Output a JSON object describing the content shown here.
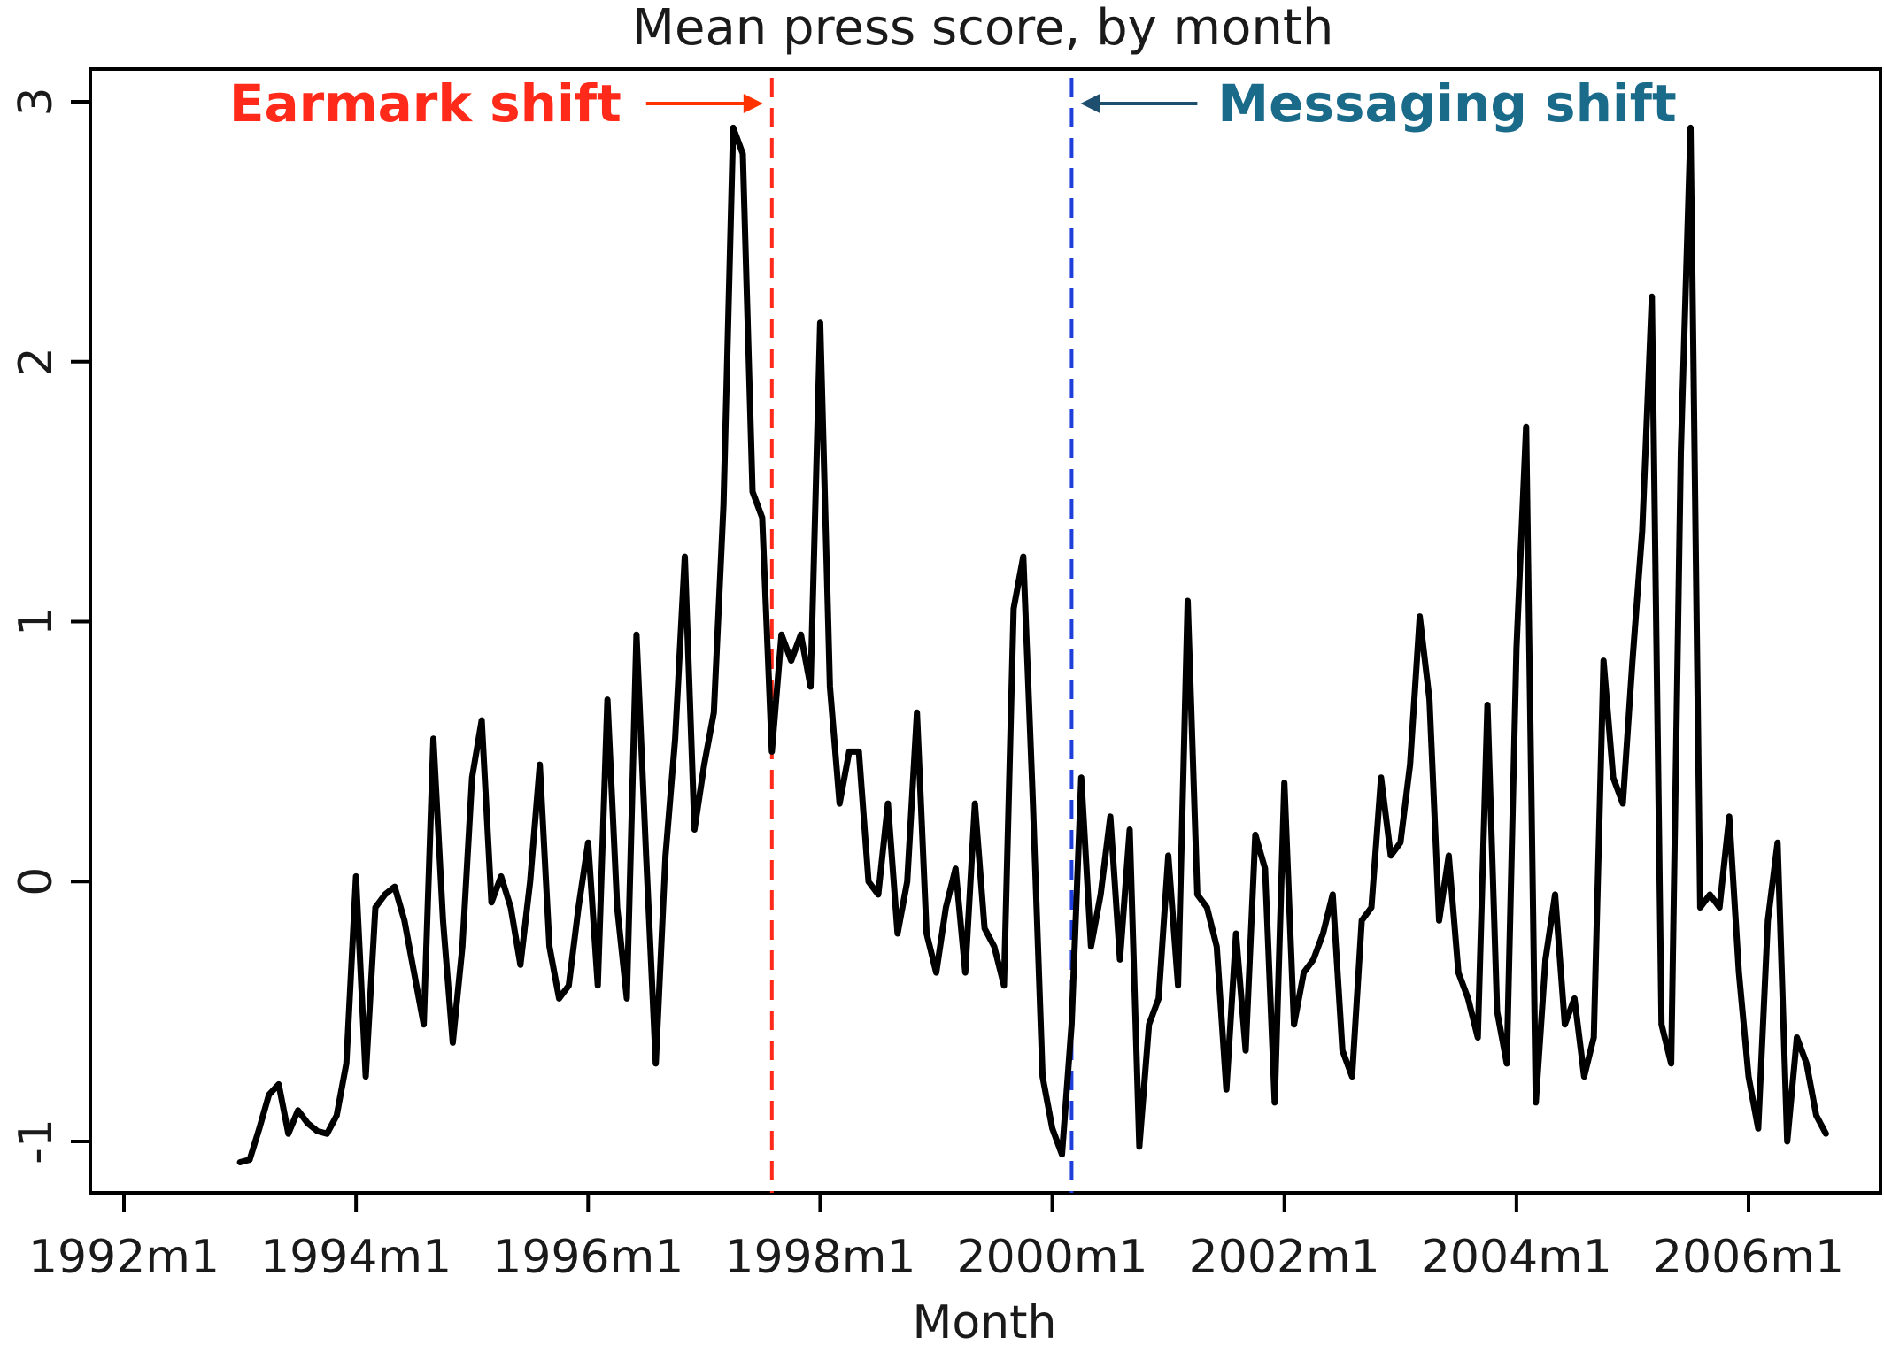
{
  "chart_data": {
    "type": "line",
    "title": "Mean press score, by month",
    "xlabel": "Month",
    "ylabel": "",
    "xlim": [
      "1992m1",
      "2007m1"
    ],
    "ylim": [
      -1.2,
      3.15
    ],
    "x_ticks": [
      "1992m1",
      "1994m1",
      "1996m1",
      "1998m1",
      "2000m1",
      "2002m1",
      "2004m1",
      "2006m1"
    ],
    "y_ticks": [
      "-1",
      "0",
      "1",
      "2",
      "3"
    ],
    "grid": false,
    "legend": "none",
    "colors": {
      "series": "#000000",
      "earmark": "#ff2a1a",
      "messaging": "#1f3fdc",
      "arrow_earmark": "#ff3300",
      "arrow_messaging": "#1f4f6e",
      "messaging_text": "#1a6a8a"
    },
    "annotations": [
      {
        "label": "Earmark shift",
        "x": "1997m8",
        "color": "#ff2a1a"
      },
      {
        "label": "Messaging shift",
        "x": "2000m3",
        "color": "#1f3fdc"
      }
    ],
    "series": [
      {
        "values": [
          [
            "1993m1",
            -1.08
          ],
          [
            "1993m2",
            -1.07
          ],
          [
            "1993m3",
            -0.95
          ],
          [
            "1993m4",
            -0.82
          ],
          [
            "1993m5",
            -0.78
          ],
          [
            "1993m6",
            -0.97
          ],
          [
            "1993m7",
            -0.88
          ],
          [
            "1993m8",
            -0.93
          ],
          [
            "1993m9",
            -0.96
          ],
          [
            "1993m10",
            -0.97
          ],
          [
            "1993m11",
            -0.9
          ],
          [
            "1993m12",
            -0.7
          ],
          [
            "1994m1",
            0.02
          ],
          [
            "1994m2",
            -0.75
          ],
          [
            "1994m3",
            -0.1
          ],
          [
            "1994m4",
            -0.05
          ],
          [
            "1994m5",
            -0.02
          ],
          [
            "1994m6",
            -0.15
          ],
          [
            "1994m7",
            -0.35
          ],
          [
            "1994m8",
            -0.55
          ],
          [
            "1994m9",
            0.55
          ],
          [
            "1994m10",
            -0.15
          ],
          [
            "1994m11",
            -0.62
          ],
          [
            "1994m12",
            -0.25
          ],
          [
            "1995m1",
            0.4
          ],
          [
            "1995m2",
            0.62
          ],
          [
            "1995m3",
            -0.08
          ],
          [
            "1995m4",
            0.02
          ],
          [
            "1995m5",
            -0.1
          ],
          [
            "1995m6",
            -0.32
          ],
          [
            "1995m7",
            0.0
          ],
          [
            "1995m8",
            0.45
          ],
          [
            "1995m9",
            -0.25
          ],
          [
            "1995m10",
            -0.45
          ],
          [
            "1995m11",
            -0.4
          ],
          [
            "1995m12",
            -0.1
          ],
          [
            "1996m1",
            0.15
          ],
          [
            "1996m2",
            -0.4
          ],
          [
            "1996m3",
            0.7
          ],
          [
            "1996m4",
            -0.1
          ],
          [
            "1996m5",
            -0.45
          ],
          [
            "1996m6",
            0.95
          ],
          [
            "1996m7",
            0.1
          ],
          [
            "1996m8",
            -0.7
          ],
          [
            "1996m9",
            0.1
          ],
          [
            "1996m10",
            0.55
          ],
          [
            "1996m11",
            1.25
          ],
          [
            "1996m12",
            0.2
          ],
          [
            "1997m1",
            0.45
          ],
          [
            "1997m2",
            0.65
          ],
          [
            "1997m3",
            1.45
          ],
          [
            "1997m4",
            2.9
          ],
          [
            "1997m5",
            2.8
          ],
          [
            "1997m6",
            1.5
          ],
          [
            "1997m7",
            1.4
          ],
          [
            "1997m8",
            0.5
          ],
          [
            "1997m9",
            0.95
          ],
          [
            "1997m10",
            0.85
          ],
          [
            "1997m11",
            0.95
          ],
          [
            "1997m12",
            0.75
          ],
          [
            "1998m1",
            2.15
          ],
          [
            "1998m2",
            0.75
          ],
          [
            "1998m3",
            0.3
          ],
          [
            "1998m4",
            0.5
          ],
          [
            "1998m5",
            0.5
          ],
          [
            "1998m6",
            0.0
          ],
          [
            "1998m7",
            -0.05
          ],
          [
            "1998m8",
            0.3
          ],
          [
            "1998m9",
            -0.2
          ],
          [
            "1998m10",
            0.0
          ],
          [
            "1998m11",
            0.65
          ],
          [
            "1998m12",
            -0.2
          ],
          [
            "1999m1",
            -0.35
          ],
          [
            "1999m2",
            -0.1
          ],
          [
            "1999m3",
            0.05
          ],
          [
            "1999m4",
            -0.35
          ],
          [
            "1999m5",
            0.3
          ],
          [
            "1999m6",
            -0.18
          ],
          [
            "1999m7",
            -0.25
          ],
          [
            "1999m8",
            -0.4
          ],
          [
            "1999m9",
            1.05
          ],
          [
            "1999m10",
            1.25
          ],
          [
            "1999m11",
            0.3
          ],
          [
            "1999m12",
            -0.75
          ],
          [
            "2000m1",
            -0.95
          ],
          [
            "2000m2",
            -1.05
          ],
          [
            "2000m3",
            -0.55
          ],
          [
            "2000m4",
            0.4
          ],
          [
            "2000m5",
            -0.25
          ],
          [
            "2000m6",
            -0.05
          ],
          [
            "2000m7",
            0.25
          ],
          [
            "2000m8",
            -0.3
          ],
          [
            "2000m9",
            0.2
          ],
          [
            "2000m10",
            -1.02
          ],
          [
            "2000m11",
            -0.55
          ],
          [
            "2000m12",
            -0.45
          ],
          [
            "2001m1",
            0.1
          ],
          [
            "2001m2",
            -0.4
          ],
          [
            "2001m3",
            1.08
          ],
          [
            "2001m4",
            -0.05
          ],
          [
            "2001m5",
            -0.1
          ],
          [
            "2001m6",
            -0.25
          ],
          [
            "2001m7",
            -0.8
          ],
          [
            "2001m8",
            -0.2
          ],
          [
            "2001m9",
            -0.65
          ],
          [
            "2001m10",
            0.18
          ],
          [
            "2001m11",
            0.05
          ],
          [
            "2001m12",
            -0.85
          ],
          [
            "2002m1",
            0.38
          ],
          [
            "2002m2",
            -0.55
          ],
          [
            "2002m3",
            -0.35
          ],
          [
            "2002m4",
            -0.3
          ],
          [
            "2002m5",
            -0.2
          ],
          [
            "2002m6",
            -0.05
          ],
          [
            "2002m7",
            -0.65
          ],
          [
            "2002m8",
            -0.75
          ],
          [
            "2002m9",
            -0.15
          ],
          [
            "2002m10",
            -0.1
          ],
          [
            "2002m11",
            0.4
          ],
          [
            "2002m12",
            0.1
          ],
          [
            "2003m1",
            0.15
          ],
          [
            "2003m2",
            0.45
          ],
          [
            "2003m3",
            1.02
          ],
          [
            "2003m4",
            0.7
          ],
          [
            "2003m5",
            -0.15
          ],
          [
            "2003m6",
            0.1
          ],
          [
            "2003m7",
            -0.35
          ],
          [
            "2003m8",
            -0.45
          ],
          [
            "2003m9",
            -0.6
          ],
          [
            "2003m10",
            0.68
          ],
          [
            "2003m11",
            -0.5
          ],
          [
            "2003m12",
            -0.7
          ],
          [
            "2004m1",
            0.9
          ],
          [
            "2004m2",
            1.75
          ],
          [
            "2004m3",
            -0.85
          ],
          [
            "2004m4",
            -0.3
          ],
          [
            "2004m5",
            -0.05
          ],
          [
            "2004m6",
            -0.55
          ],
          [
            "2004m7",
            -0.45
          ],
          [
            "2004m8",
            -0.75
          ],
          [
            "2004m9",
            -0.6
          ],
          [
            "2004m10",
            0.85
          ],
          [
            "2004m11",
            0.4
          ],
          [
            "2004m12",
            0.3
          ],
          [
            "2005m1",
            0.85
          ],
          [
            "2005m2",
            1.35
          ],
          [
            "2005m3",
            2.25
          ],
          [
            "2005m4",
            -0.55
          ],
          [
            "2005m5",
            -0.7
          ],
          [
            "2005m6",
            1.65
          ],
          [
            "2005m7",
            2.9
          ],
          [
            "2005m8",
            -0.1
          ],
          [
            "2005m9",
            -0.05
          ],
          [
            "2005m10",
            -0.1
          ],
          [
            "2005m11",
            0.25
          ],
          [
            "2005m12",
            -0.35
          ],
          [
            "2006m1",
            -0.75
          ],
          [
            "2006m2",
            -0.95
          ],
          [
            "2006m3",
            -0.15
          ],
          [
            "2006m4",
            0.15
          ],
          [
            "2006m5",
            -1.0
          ],
          [
            "2006m6",
            -0.6
          ],
          [
            "2006m7",
            -0.7
          ],
          [
            "2006m8",
            -0.9
          ],
          [
            "2006m9",
            -0.97
          ]
        ]
      }
    ]
  }
}
